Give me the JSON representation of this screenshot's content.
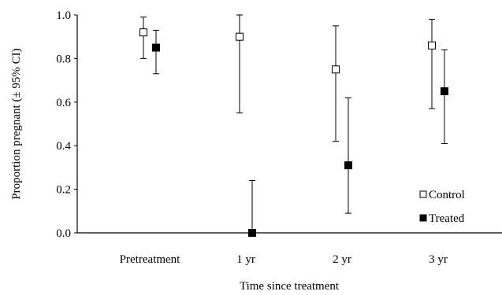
{
  "chart_data": {
    "type": "scatter",
    "xlabel": "Time since treatment",
    "ylabel": "Proportion pregnant (± 95% CI)",
    "categories": [
      "Pretreatment",
      "1 yr",
      "2 yr",
      "3 yr"
    ],
    "ylim": [
      0.0,
      1.0
    ],
    "yticks": [
      "0.0",
      "0.2",
      "0.4",
      "0.6",
      "0.8",
      "1.0"
    ],
    "grid": false,
    "legend_position": "bottom-right",
    "series": [
      {
        "name": "Control",
        "marker": "open-square",
        "values": [
          0.92,
          0.9,
          0.75,
          0.86
        ],
        "ci_low": [
          0.8,
          0.55,
          0.42,
          0.57
        ],
        "ci_high": [
          0.99,
          1.0,
          0.95,
          0.98
        ]
      },
      {
        "name": "Treated",
        "marker": "filled-square",
        "values": [
          0.85,
          0.0,
          0.31,
          0.65
        ],
        "ci_low": [
          0.73,
          0.0,
          0.09,
          0.41
        ],
        "ci_high": [
          0.93,
          0.24,
          0.62,
          0.84
        ]
      }
    ]
  }
}
